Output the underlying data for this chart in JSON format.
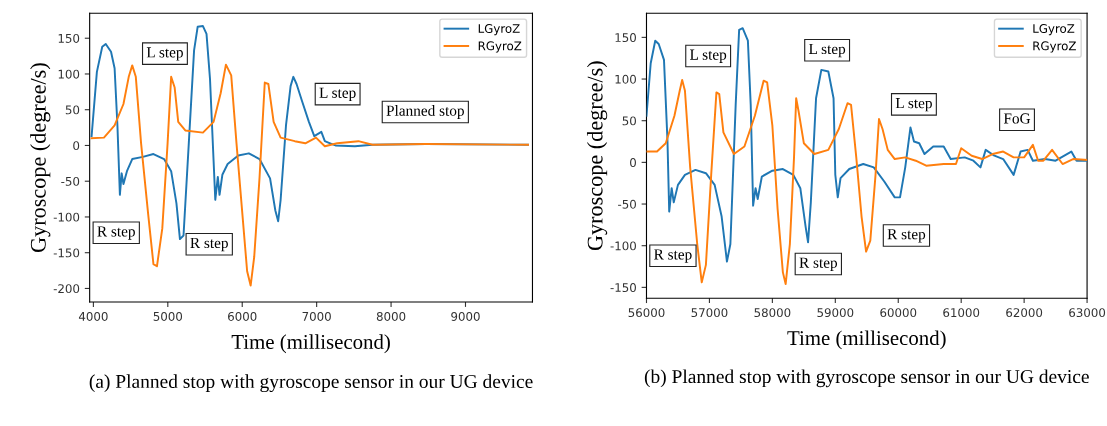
{
  "chart_data": [
    {
      "type": "line",
      "xlabel": "Time (millisecond)",
      "ylabel": "Gyroscope (degree/s)",
      "xlim": [
        3950,
        9900
      ],
      "xticks": [
        4000,
        5000,
        6000,
        7000,
        8000,
        9000
      ],
      "ylim": [
        -219,
        185
      ],
      "yticks": [
        -200,
        -150,
        -100,
        -50,
        0,
        50,
        100,
        150
      ],
      "grid": false,
      "legend": "top right",
      "series": [
        {
          "name": "LGyroZ",
          "color": "#1f77b4",
          "x": [
            3976,
            4047,
            4119,
            4166,
            4237,
            4285,
            4323,
            4356,
            4380,
            4404,
            4451,
            4522,
            4665,
            4807,
            4950,
            5045,
            5116,
            5163,
            5211,
            5282,
            5353,
            5401,
            5472,
            5520,
            5567,
            5615,
            5638,
            5672,
            5695,
            5733,
            5804,
            5947,
            6089,
            6232,
            6374,
            6445,
            6483,
            6516,
            6588,
            6650,
            6687,
            6730,
            6801,
            6896,
            6968,
            7063,
            7110,
            7181,
            7253,
            7514,
            7751,
            8463,
            9840
          ],
          "values": [
            13,
            103,
            138,
            142,
            131,
            108,
            28,
            -69,
            -39,
            -54,
            -36,
            -19,
            -16,
            -12,
            -19,
            -36,
            -81,
            -131,
            -126,
            3,
            133,
            166,
            167,
            156,
            93,
            -21,
            -76,
            -44,
            -69,
            -41,
            -26,
            -14,
            -11,
            -19,
            -46,
            -91,
            -106,
            -76,
            28,
            83,
            96,
            86,
            63,
            33,
            13,
            19,
            6,
            3,
            0,
            -1,
            1,
            2,
            1
          ]
        },
        {
          "name": "RGyroZ",
          "color": "#ff7f0e",
          "x": [
            3976,
            4142,
            4285,
            4404,
            4475,
            4522,
            4570,
            4641,
            4736,
            4807,
            4854,
            4926,
            4997,
            5045,
            5092,
            5140,
            5235,
            5472,
            5615,
            5710,
            5781,
            5852,
            5923,
            5994,
            6066,
            6113,
            6161,
            6232,
            6303,
            6351,
            6422,
            6516,
            6706,
            6848,
            6991,
            7110,
            7276,
            7561,
            7751,
            8463,
            9840
          ],
          "values": [
            10,
            11,
            28,
            58,
            96,
            112,
            96,
            3,
            -96,
            -166,
            -169,
            -116,
            3,
            96,
            81,
            33,
            21,
            18,
            33,
            73,
            113,
            98,
            3,
            -86,
            -176,
            -196,
            -156,
            -46,
            88,
            86,
            33,
            11,
            6,
            3,
            11,
            -1,
            3,
            6,
            1,
            2,
            1
          ]
        }
      ],
      "annotations": [
        "L step",
        "R step",
        "R step",
        "L step",
        "Planned stop",
        "(a) Planned stop with gyroscope sensor in our UG device"
      ]
    },
    {
      "type": "line",
      "xlabel": "Time (millisecond)",
      "ylabel": "Gyroscope (degree/s)",
      "xlim": [
        56000,
        63000
      ],
      "xticks": [
        56000,
        57000,
        58000,
        59000,
        60000,
        61000,
        62000,
        63000
      ],
      "ylim": [
        -163,
        179
      ],
      "yticks": [
        -150,
        -100,
        -50,
        0,
        50,
        100,
        150
      ],
      "grid": false,
      "legend": "top right",
      "series": [
        {
          "name": "LGyroZ",
          "color": "#1f77b4",
          "x": [
            56000,
            56067,
            56139,
            56194,
            56278,
            56333,
            56361,
            56400,
            56433,
            56500,
            56611,
            56778,
            56944,
            57083,
            57194,
            57278,
            57333,
            57417,
            57472,
            57528,
            57611,
            57656,
            57694,
            57733,
            57767,
            57833,
            58000,
            58167,
            58333,
            58444,
            58528,
            58567,
            58611,
            58694,
            58778,
            58889,
            58972,
            59000,
            59039,
            59083,
            59222,
            59444,
            59611,
            59778,
            59944,
            60028,
            60111,
            60194,
            60250,
            60333,
            60417,
            60556,
            60722,
            60833,
            61056,
            61194,
            61306,
            61389,
            61528,
            61667,
            61833,
            61944,
            62056,
            62139,
            62333,
            62500,
            62750,
            62833,
            63000
          ],
          "values": [
            56,
            119,
            146,
            142,
            123,
            27,
            -59,
            -31,
            -48,
            -27,
            -15,
            -9,
            -13,
            -27,
            -65,
            -119,
            -98,
            69,
            159,
            161,
            146,
            69,
            -52,
            -31,
            -44,
            -17,
            -10,
            -8,
            -15,
            -31,
            -77,
            -96,
            -48,
            77,
            111,
            109,
            77,
            -15,
            -42,
            -19,
            -8,
            -2,
            -6,
            -23,
            -42,
            -42,
            -6,
            42,
            25,
            23,
            10,
            19,
            19,
            4,
            6,
            2,
            -6,
            15,
            8,
            4,
            -15,
            13,
            15,
            2,
            4,
            2,
            13,
            2,
            2
          ]
        },
        {
          "name": "RGyroZ",
          "color": "#ff7f0e",
          "x": [
            56000,
            56167,
            56306,
            56444,
            56528,
            56567,
            56611,
            56694,
            56806,
            56878,
            56944,
            57028,
            57111,
            57156,
            57222,
            57389,
            57556,
            57722,
            57861,
            57917,
            58000,
            58083,
            58167,
            58211,
            58278,
            58344,
            58378,
            58417,
            58500,
            58667,
            58889,
            59056,
            59194,
            59250,
            59333,
            59417,
            59489,
            59556,
            59639,
            59694,
            59750,
            59833,
            59944,
            60111,
            60278,
            60444,
            60722,
            60917,
            61000,
            61167,
            61333,
            61500,
            61667,
            61833,
            62000,
            62139,
            62222,
            62306,
            62444,
            62611,
            62778,
            63000
          ],
          "values": [
            13,
            13,
            23,
            56,
            86,
            99,
            86,
            -6,
            -98,
            -144,
            -123,
            -15,
            84,
            82,
            36,
            10,
            19,
            56,
            98,
            96,
            44,
            -56,
            -132,
            -146,
            -98,
            6,
            77,
            61,
            23,
            10,
            15,
            40,
            71,
            69,
            6,
            -65,
            -107,
            -94,
            -15,
            52,
            40,
            15,
            4,
            6,
            2,
            -4,
            -2,
            -2,
            17,
            8,
            4,
            10,
            13,
            6,
            6,
            21,
            2,
            2,
            15,
            -2,
            4,
            3
          ]
        }
      ],
      "annotations": [
        "L step",
        "L step",
        "L step",
        "R step",
        "R step",
        "R step",
        "FoG",
        "(b) Planned stop with gyroscope sensor in our UG device"
      ]
    }
  ]
}
